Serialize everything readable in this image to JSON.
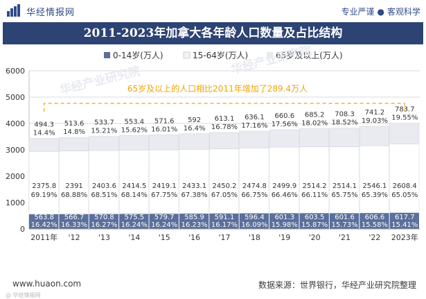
{
  "header": {
    "brand": "华经情报网",
    "slogan_left": "专业严谨",
    "slogan_sep": "●",
    "slogan_right": "客观科学"
  },
  "footer": {
    "url": "www.huaon.com",
    "source": "数据来源：世界银行，华经产业研究院整理",
    "mark": "@ 华经情报网"
  },
  "watermarks": [
    "华经产业研究院",
    "华经产业研究院",
    "华经产业研究院"
  ],
  "colors": {
    "title_bg": "#2d4374",
    "series_0_14": "#5a6f9b",
    "series_15_64": "#ffffff",
    "series_65": "#e9ebf1",
    "annotation": "#f0a400",
    "grid": "#d9d9d9"
  },
  "chart_data": {
    "type": "bar",
    "stacked": true,
    "title": "2011-2023年加拿大各年龄人口数量及占比结构",
    "categories": [
      "2011年",
      "'12",
      "'13",
      "'14",
      "'15",
      "'16",
      "'17",
      "'18",
      "'19",
      "'20",
      "'21",
      "'22",
      "2023年"
    ],
    "series": [
      {
        "name": "0-14岁(万人)",
        "values": [
          563.8,
          566.7,
          570.8,
          575.5,
          579.7,
          585.9,
          591.1,
          596.4,
          601.3,
          603.5,
          601.6,
          606.6,
          617.7
        ],
        "shares": [
          "16.42%",
          "16.33%",
          "16.27%",
          "16.24%",
          "16.24%",
          "16.23%",
          "16.17%",
          "16.09%",
          "15.98%",
          "15.87%",
          "15.73%",
          "15.58%",
          "15.41%"
        ]
      },
      {
        "name": "15-64岁(万人)",
        "values": [
          2375.8,
          2391,
          2403.6,
          2414.5,
          2419.1,
          2433.1,
          2450.2,
          2474.8,
          2499.9,
          2514.2,
          2514.1,
          2546.1,
          2608.4
        ],
        "shares": [
          "69.19%",
          "68.88%",
          "68.51%",
          "68.14%",
          "67.75%",
          "67.38%",
          "67.05%",
          "66.75%",
          "66.46%",
          "66.11%",
          "65.75%",
          "65.39%",
          "65.05%"
        ]
      },
      {
        "name": "65岁及以上(万人)",
        "values": [
          494.3,
          513.6,
          533.7,
          553.4,
          571.6,
          592,
          613.1,
          636.1,
          660.6,
          685.2,
          708.3,
          741.2,
          783.7
        ],
        "shares": [
          "14.4%",
          "14.8%",
          "15.21%",
          "15.62%",
          "16.01%",
          "16.4%",
          "16.78%",
          "17.16%",
          "17.56%",
          "18.02%",
          "18.52%",
          "19.03%",
          "19.55%"
        ]
      }
    ],
    "ylim": [
      0,
      6000
    ],
    "yticks": [
      0,
      1000,
      2000,
      3000,
      4000,
      5000,
      6000
    ],
    "grid": true,
    "legend_position": "top",
    "annotation": "65岁及以上的人口相比2011年增加了289.4万人"
  }
}
